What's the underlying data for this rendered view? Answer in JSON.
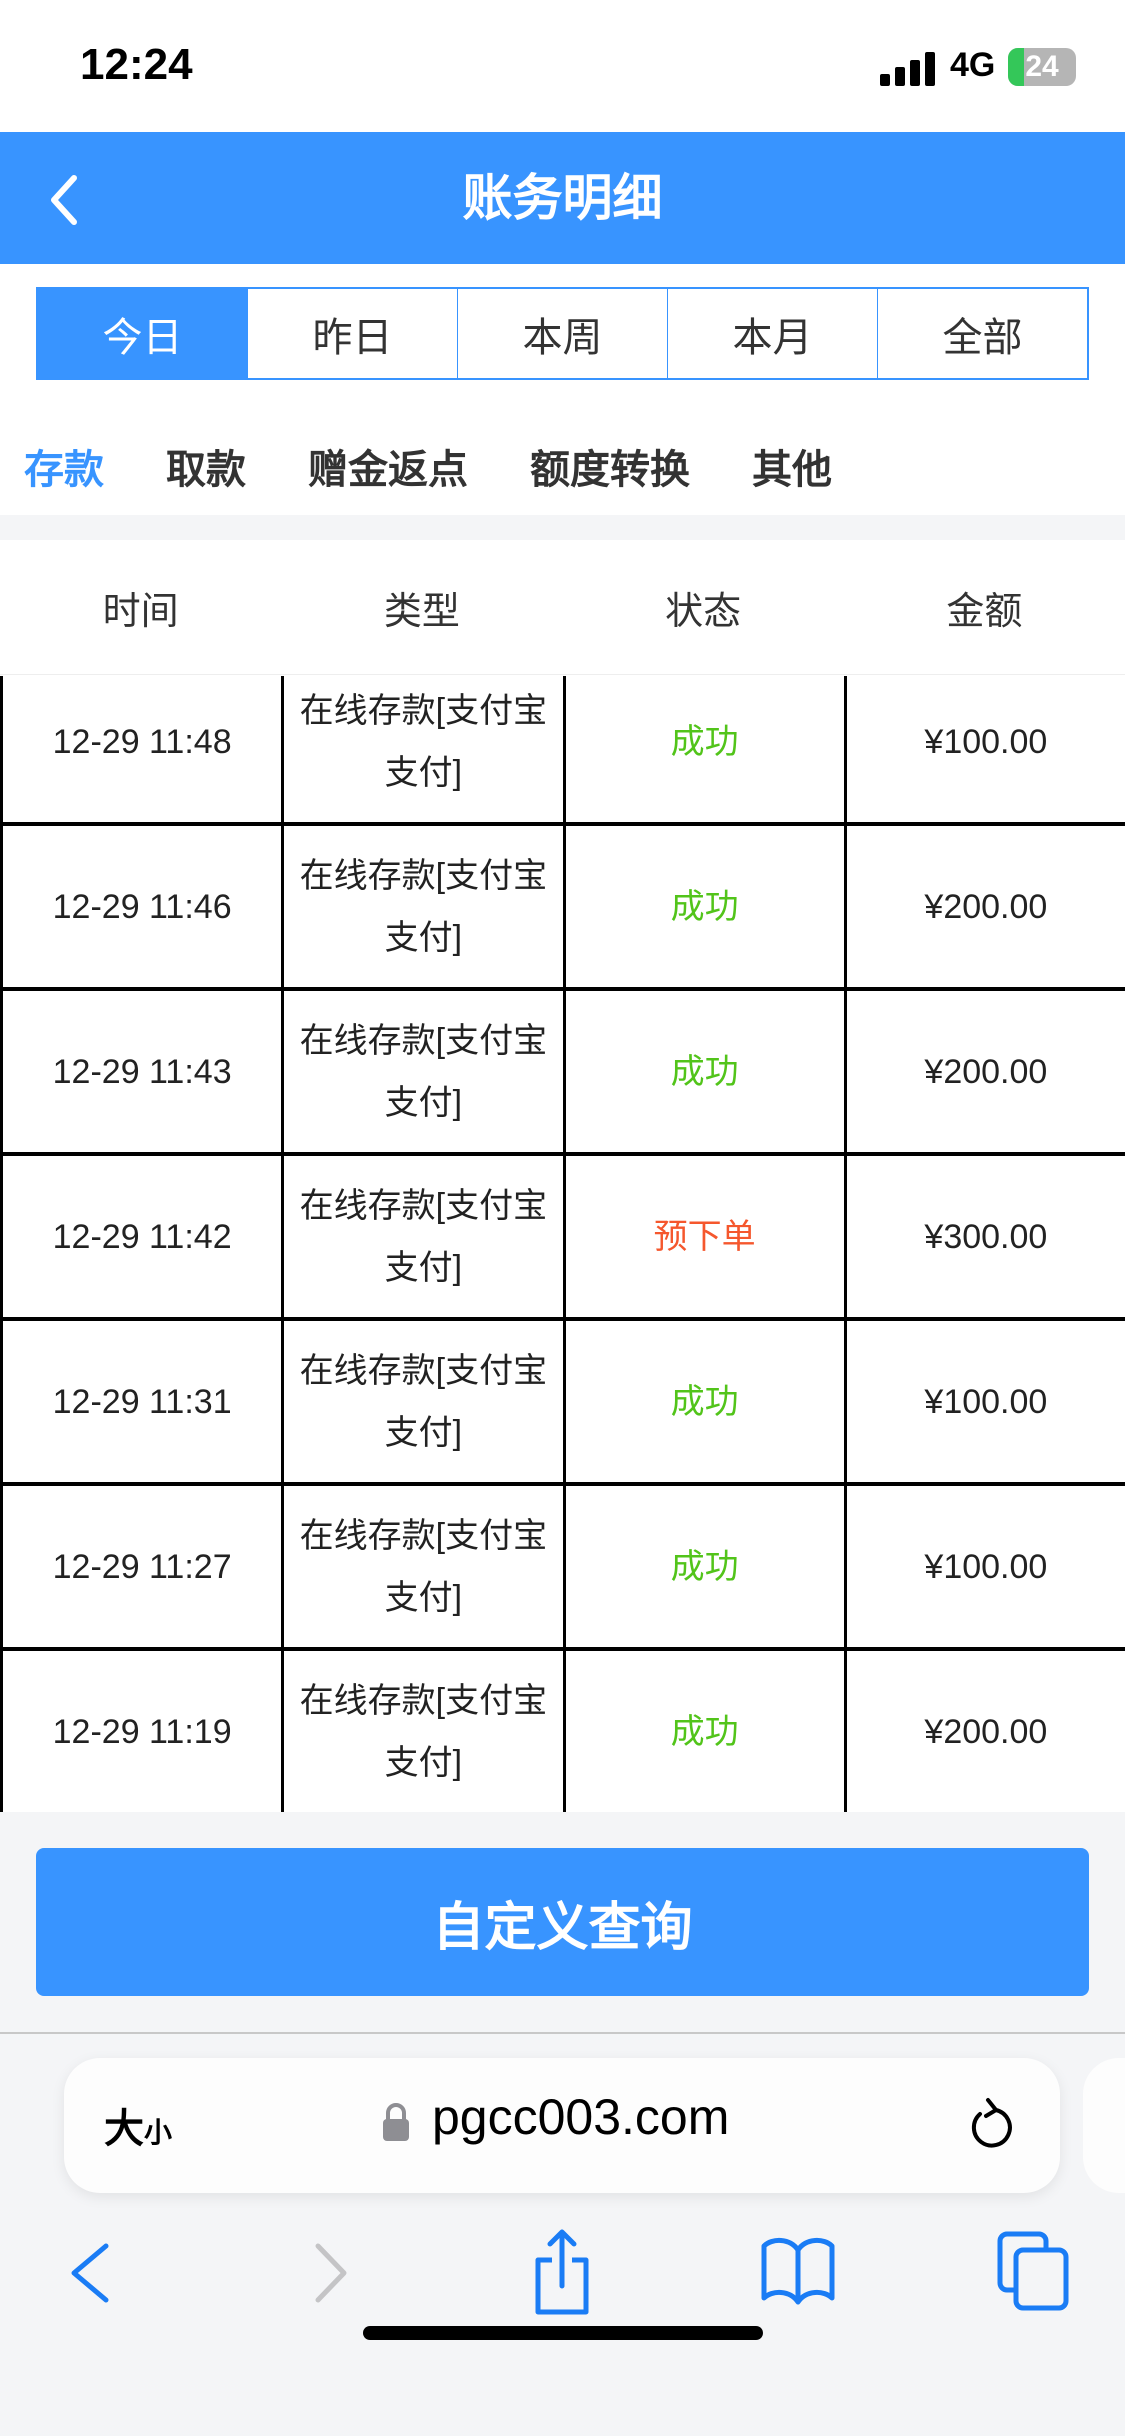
{
  "status_bar": {
    "time": "12:24",
    "network": "4G",
    "battery": "24"
  },
  "header": {
    "title": "账务明细",
    "back_icon": "chevron-left-icon"
  },
  "date_tabs": [
    {
      "label": "今日",
      "active": true
    },
    {
      "label": "昨日"
    },
    {
      "label": "本周"
    },
    {
      "label": "本月"
    },
    {
      "label": "全部"
    }
  ],
  "category_tabs": [
    {
      "label": "存款",
      "active": true
    },
    {
      "label": "取款"
    },
    {
      "label": "赠金返点"
    },
    {
      "label": "额度转换"
    },
    {
      "label": "其他"
    }
  ],
  "table": {
    "headers": [
      "时间",
      "类型",
      "状态",
      "金额"
    ],
    "rows": [
      {
        "time": "12-29 11:48",
        "type": "在线存款[支付宝支付]",
        "status": "成功",
        "amount": "¥100.00"
      },
      {
        "time": "12-29 11:46",
        "type": "在线存款[支付宝支付]",
        "status": "成功",
        "amount": "¥200.00"
      },
      {
        "time": "12-29 11:43",
        "type": "在线存款[支付宝支付]",
        "status": "成功",
        "amount": "¥200.00"
      },
      {
        "time": "12-29 11:42",
        "type": "在线存款[支付宝支付]",
        "status": "预下单",
        "amount": "¥300.00"
      },
      {
        "time": "12-29 11:31",
        "type": "在线存款[支付宝支付]",
        "status": "成功",
        "amount": "¥100.00"
      },
      {
        "time": "12-29 11:27",
        "type": "在线存款[支付宝支付]",
        "status": "成功",
        "amount": "¥100.00"
      },
      {
        "time": "12-29 11:19",
        "type": "在线存款[支付宝支付]",
        "status": "成功",
        "amount": "¥200.00"
      }
    ]
  },
  "query_button": "自定义查询",
  "browser": {
    "text_size_big": "大",
    "text_size_small": "小",
    "url": "pgcc003.com"
  },
  "colors": {
    "accent": "#3894ff",
    "success": "#52c41a",
    "pending": "#f5572d"
  }
}
